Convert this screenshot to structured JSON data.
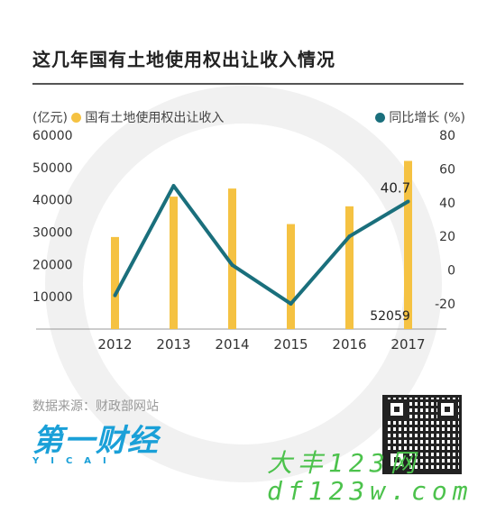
{
  "title": "这几年国有土地使用权出让收入情况",
  "legend": {
    "left_unit": "(亿元)",
    "bar_label": "国有土地使用权出让收入",
    "line_label": "同比增长",
    "right_unit": "(%)"
  },
  "source": "数据来源：财政部网站",
  "logo": {
    "main": "第一财经",
    "sub": "YICAI"
  },
  "watermark": {
    "line1": "大丰123网",
    "line2": "df123w.com"
  },
  "colors": {
    "bar": "#f5c242",
    "line": "#1a6f7c",
    "watermark_ring": "#f1f1f1"
  },
  "chart_data": {
    "type": "bar+line",
    "categories": [
      "2012",
      "2013",
      "2014",
      "2015",
      "2016",
      "2017"
    ],
    "series": [
      {
        "name": "国有土地使用权出让收入",
        "axis": "left",
        "values": [
          28500,
          41000,
          43500,
          32500,
          38000,
          52059
        ]
      },
      {
        "name": "同比增长",
        "axis": "right",
        "values": [
          -15,
          50,
          3,
          -20,
          20,
          40.7
        ]
      }
    ],
    "left_axis": {
      "ticks": [
        "10000",
        "20000",
        "30000",
        "40000",
        "50000",
        "60000"
      ],
      "range": [
        0,
        60000
      ]
    },
    "right_axis": {
      "ticks": [
        "-20",
        "0",
        "20",
        "40",
        "60",
        "80"
      ],
      "range": [
        -35,
        80
      ]
    },
    "data_labels": {
      "line_last": "40.7",
      "bar_last": "52059"
    }
  }
}
